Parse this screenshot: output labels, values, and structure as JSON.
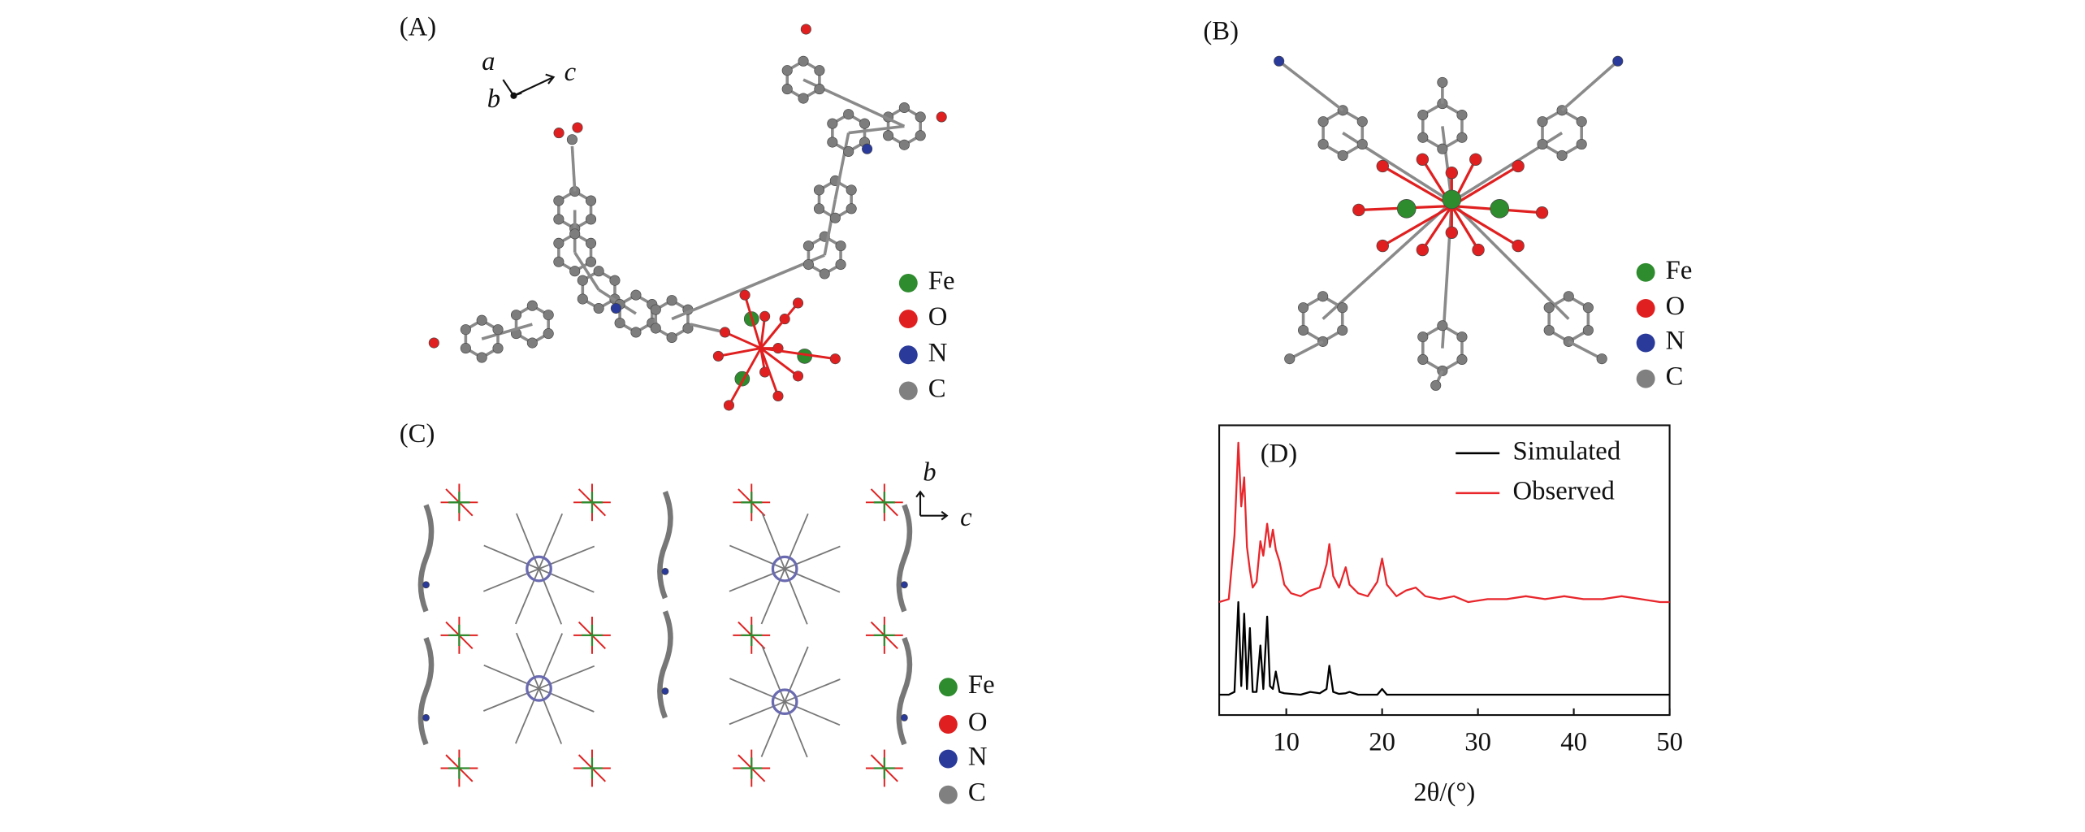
{
  "panels": {
    "A": {
      "label": "(A)",
      "axes": [
        "a",
        "b",
        "c"
      ],
      "legend": [
        {
          "name": "Fe",
          "color": "#2e8b2e"
        },
        {
          "name": "O",
          "color": "#e02020"
        },
        {
          "name": "N",
          "color": "#2a3a9a"
        },
        {
          "name": "C",
          "color": "#808080"
        }
      ]
    },
    "B": {
      "label": "(B)",
      "legend": [
        {
          "name": "Fe",
          "color": "#2e8b2e"
        },
        {
          "name": "O",
          "color": "#e02020"
        },
        {
          "name": "N",
          "color": "#2a3a9a"
        },
        {
          "name": "C",
          "color": "#808080"
        }
      ]
    },
    "C": {
      "label": "(C)",
      "axes": [
        "b",
        "c"
      ],
      "legend": [
        {
          "name": "Fe",
          "color": "#2e8b2e"
        },
        {
          "name": "O",
          "color": "#e02020"
        },
        {
          "name": "N",
          "color": "#2a3a9a"
        },
        {
          "name": "C",
          "color": "#808080"
        }
      ]
    }
  },
  "chart_data": {
    "type": "line",
    "panel_label": "(D)",
    "xlabel": "2θ/(°)",
    "x": [
      3,
      4,
      4.6,
      5,
      5.3,
      5.6,
      5.9,
      6.2,
      6.5,
      6.9,
      7.3,
      7.6,
      8,
      8.3,
      8.6,
      8.9,
      9.3,
      9.8,
      10.5,
      11.5,
      12.5,
      13.5,
      14.2,
      14.5,
      14.9,
      15.5,
      16.2,
      16.6,
      17.5,
      18.5,
      19.5,
      20,
      20.5,
      21.5,
      22.5,
      23.5,
      24.5,
      26,
      27.5,
      29,
      31,
      33,
      35,
      37,
      39,
      41,
      43,
      45,
      47,
      49,
      50
    ],
    "series": [
      {
        "name": "Simulated",
        "color": "#000000",
        "values": [
          7,
          7,
          8,
          39,
          10,
          35,
          9,
          30,
          8,
          8,
          24,
          9,
          34,
          10,
          9,
          15,
          8,
          7.5,
          7.3,
          7,
          8,
          7.5,
          9,
          17,
          8,
          7.3,
          7.5,
          8,
          7,
          7,
          7,
          9,
          7,
          7,
          7,
          7,
          7,
          7,
          7,
          7,
          7,
          7,
          7,
          7,
          7,
          7,
          7,
          7,
          7,
          7,
          7
        ]
      },
      {
        "name": "Observed",
        "color": "#e8262b",
        "values": [
          39,
          40,
          62,
          94,
          72,
          82,
          58,
          50,
          44,
          46,
          60,
          55,
          66,
          58,
          64,
          57,
          53,
          45,
          42,
          41,
          43,
          44,
          52,
          59,
          48,
          44,
          51,
          45,
          42,
          41,
          46,
          54,
          45,
          41,
          43,
          44,
          41,
          40,
          41,
          39,
          40,
          40,
          41,
          40,
          41,
          40,
          40,
          41,
          40,
          39,
          39
        ]
      }
    ],
    "xlim": [
      3,
      50
    ],
    "ylim": [
      0,
      100
    ],
    "xticks": [
      10,
      20,
      30,
      40,
      50
    ],
    "legend_position": "upper right"
  }
}
